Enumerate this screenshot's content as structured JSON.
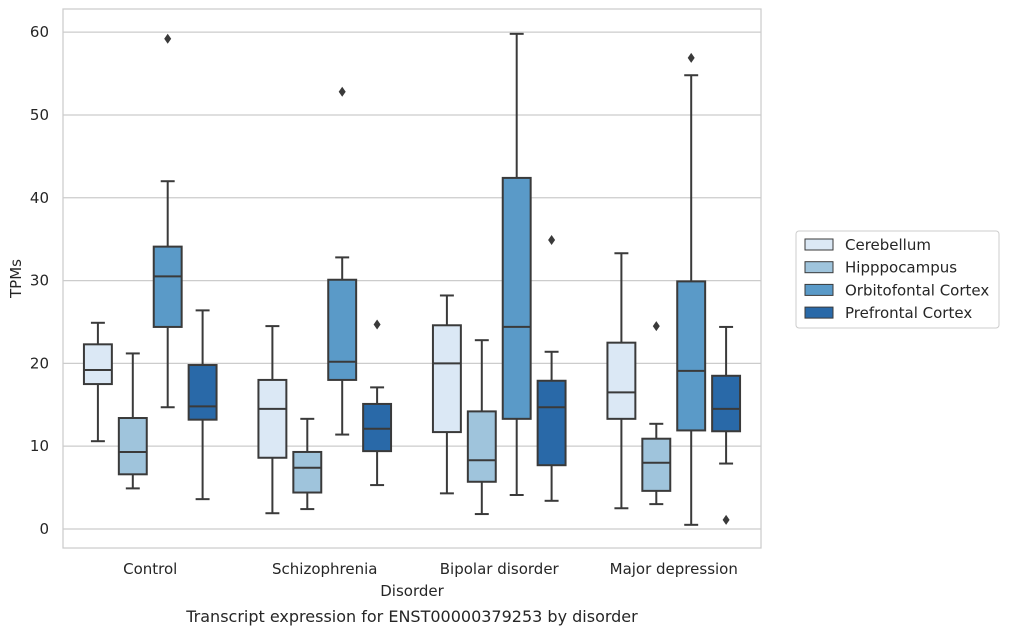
{
  "chart_data": {
    "type": "box",
    "caption": "Transcript expression for ENST00000379253 by disorder",
    "xlabel": "Disorder",
    "ylabel": "TPMs",
    "ylim": [
      -2.3,
      62.8
    ],
    "yticks": [
      0,
      10,
      20,
      30,
      40,
      50,
      60
    ],
    "grid": "horizontal",
    "legend_position": "right",
    "categories": [
      "Control",
      "Schizophrenia",
      "Bipolar disorder",
      "Major depression"
    ],
    "series": [
      {
        "name": "Cerebellum",
        "color": "#dbe8f5",
        "boxes": [
          {
            "whisker_low": 10.6,
            "q1": 17.5,
            "median": 19.2,
            "q3": 22.3,
            "whisker_high": 24.9,
            "outliers": []
          },
          {
            "whisker_low": 1.9,
            "q1": 8.6,
            "median": 14.5,
            "q3": 18.0,
            "whisker_high": 24.5,
            "outliers": []
          },
          {
            "whisker_low": 4.3,
            "q1": 11.7,
            "median": 20.0,
            "q3": 24.6,
            "whisker_high": 28.2,
            "outliers": []
          },
          {
            "whisker_low": 2.5,
            "q1": 13.3,
            "median": 16.5,
            "q3": 22.5,
            "whisker_high": 33.3,
            "outliers": []
          }
        ]
      },
      {
        "name": "Hipppocampus",
        "color": "#9fc4dc",
        "boxes": [
          {
            "whisker_low": 4.9,
            "q1": 6.6,
            "median": 9.3,
            "q3": 13.4,
            "whisker_high": 21.2,
            "outliers": []
          },
          {
            "whisker_low": 2.4,
            "q1": 4.4,
            "median": 7.4,
            "q3": 9.3,
            "whisker_high": 13.3,
            "outliers": []
          },
          {
            "whisker_low": 1.8,
            "q1": 5.7,
            "median": 8.3,
            "q3": 14.2,
            "whisker_high": 22.8,
            "outliers": []
          },
          {
            "whisker_low": 3.0,
            "q1": 4.6,
            "median": 8.0,
            "q3": 10.9,
            "whisker_high": 12.7,
            "outliers": [
              24.5
            ]
          }
        ]
      },
      {
        "name": "Orbitofontal Cortex",
        "color": "#5a9ac8",
        "boxes": [
          {
            "whisker_low": 14.7,
            "q1": 24.4,
            "median": 30.5,
            "q3": 34.1,
            "whisker_high": 42.0,
            "outliers": [
              59.2
            ]
          },
          {
            "whisker_low": 11.4,
            "q1": 18.0,
            "median": 20.2,
            "q3": 30.1,
            "whisker_high": 32.8,
            "outliers": [
              52.8
            ]
          },
          {
            "whisker_low": 4.1,
            "q1": 13.3,
            "median": 24.4,
            "q3": 42.4,
            "whisker_high": 59.8,
            "outliers": []
          },
          {
            "whisker_low": 0.5,
            "q1": 11.9,
            "median": 19.1,
            "q3": 29.9,
            "whisker_high": 54.8,
            "outliers": [
              56.9
            ]
          }
        ]
      },
      {
        "name": "Prefrontal Cortex",
        "color": "#2969a8",
        "boxes": [
          {
            "whisker_low": 3.6,
            "q1": 13.2,
            "median": 14.8,
            "q3": 19.8,
            "whisker_high": 26.4,
            "outliers": []
          },
          {
            "whisker_low": 5.3,
            "q1": 9.4,
            "median": 12.1,
            "q3": 15.1,
            "whisker_high": 17.1,
            "outliers": [
              24.7
            ]
          },
          {
            "whisker_low": 3.4,
            "q1": 7.7,
            "median": 14.7,
            "q3": 17.9,
            "whisker_high": 21.4,
            "outliers": [
              34.9
            ]
          },
          {
            "whisker_low": 7.9,
            "q1": 11.8,
            "median": 14.5,
            "q3": 18.5,
            "whisker_high": 24.4,
            "outliers": [
              1.1
            ]
          }
        ]
      }
    ]
  }
}
